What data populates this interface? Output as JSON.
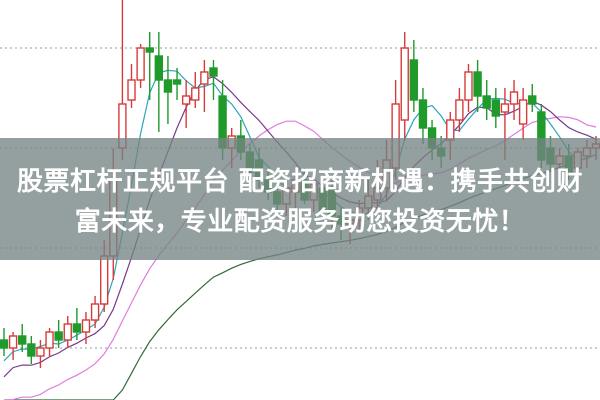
{
  "caption": {
    "line1": "股票杠杆正规平台 配资招商新机遇：携手共创财",
    "line2": "富未来，专业配资服务助您投资无忧！"
  },
  "chart_data": {
    "type": "candlestick",
    "title": "",
    "xlabel": "",
    "ylabel": "",
    "ylim": [
      0,
      100
    ],
    "grid": "horizontal dotted",
    "up_color": "#d83a3a",
    "down_color": "#1f9a2b",
    "moving_averages": [
      {
        "period": 5,
        "color": "#2aa6b8"
      },
      {
        "period": 10,
        "color": "#7a3a8c"
      },
      {
        "period": 20,
        "color": "#e27be0"
      },
      {
        "period": 60,
        "color": "#2f6b3a"
      }
    ],
    "ohlc": [
      [
        15,
        18,
        11,
        13
      ],
      [
        13,
        17,
        10,
        16
      ],
      [
        16,
        19,
        12,
        14
      ],
      [
        14,
        16,
        9,
        11
      ],
      [
        11,
        15,
        8,
        13
      ],
      [
        13,
        18,
        11,
        17
      ],
      [
        17,
        20,
        13,
        15
      ],
      [
        15,
        21,
        13,
        19
      ],
      [
        19,
        23,
        15,
        17
      ],
      [
        17,
        22,
        14,
        20
      ],
      [
        20,
        26,
        18,
        24
      ],
      [
        24,
        40,
        22,
        36
      ],
      [
        36,
        63,
        30,
        55
      ],
      [
        63,
        100,
        60,
        74
      ],
      [
        75,
        84,
        73,
        80
      ],
      [
        80,
        89,
        78,
        88
      ],
      [
        88,
        92,
        75,
        87
      ],
      [
        86,
        92,
        67,
        80
      ],
      [
        80,
        86,
        69,
        77
      ],
      [
        80,
        83,
        75,
        79
      ],
      [
        74,
        80,
        68,
        76
      ],
      [
        75,
        82,
        73,
        78
      ],
      [
        79,
        85,
        72,
        82
      ],
      [
        83,
        85,
        75,
        81
      ],
      [
        76,
        80,
        60,
        63
      ],
      [
        63,
        68,
        58,
        66
      ],
      [
        66,
        70,
        60,
        62
      ],
      [
        62,
        64,
        55,
        57
      ],
      [
        60,
        63,
        53,
        55
      ],
      [
        55,
        58,
        50,
        52
      ],
      [
        52,
        54,
        47,
        49
      ],
      [
        49,
        55,
        46,
        53
      ],
      [
        52,
        57,
        48,
        55
      ],
      [
        55,
        58,
        49,
        50
      ],
      [
        50,
        57,
        47,
        54
      ],
      [
        53,
        56,
        45,
        47
      ],
      [
        53,
        55,
        43,
        46
      ],
      [
        46,
        48,
        40,
        44
      ],
      [
        44,
        47,
        39,
        45
      ],
      [
        45,
        50,
        42,
        48
      ],
      [
        48,
        55,
        45,
        51
      ],
      [
        50,
        60,
        46,
        53
      ],
      [
        53,
        65,
        50,
        60
      ],
      [
        58,
        80,
        55,
        74
      ],
      [
        70,
        92,
        65,
        88
      ],
      [
        85,
        90,
        72,
        75
      ],
      [
        75,
        78,
        64,
        68
      ],
      [
        68,
        70,
        60,
        63
      ],
      [
        63,
        66,
        58,
        61
      ],
      [
        65,
        72,
        60,
        70
      ],
      [
        70,
        78,
        67,
        75
      ],
      [
        75,
        84,
        72,
        82
      ],
      [
        82,
        85,
        72,
        76
      ],
      [
        76,
        80,
        70,
        73
      ],
      [
        75,
        78,
        68,
        71
      ],
      [
        72,
        78,
        60,
        74
      ],
      [
        74,
        80,
        70,
        77
      ],
      [
        69,
        78,
        65,
        75
      ],
      [
        76,
        79,
        72,
        74
      ],
      [
        72,
        74,
        58,
        60
      ],
      [
        63,
        66,
        57,
        59
      ],
      [
        59,
        63,
        56,
        61
      ],
      [
        61,
        64,
        55,
        57
      ],
      [
        58,
        63,
        55,
        62
      ],
      [
        61,
        65,
        58,
        63
      ],
      [
        63,
        66,
        60,
        64
      ]
    ]
  }
}
